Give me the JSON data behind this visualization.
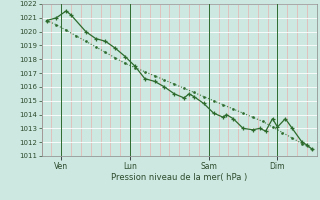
{
  "xlabel": "Pression niveau de la mer( hPa )",
  "bg_color": "#cce8e0",
  "grid_color_h": "#ffffff",
  "grid_color_v": "#e8b0b0",
  "line_color": "#2d6b2d",
  "ylim": [
    1011,
    1022
  ],
  "xlim": [
    0,
    28
  ],
  "yticks": [
    1011,
    1012,
    1013,
    1014,
    1015,
    1016,
    1017,
    1018,
    1019,
    1020,
    1021,
    1022
  ],
  "xtick_labels": [
    "Ven",
    "Lun",
    "Sam",
    "Dim"
  ],
  "xtick_positions": [
    2,
    9,
    17,
    24
  ],
  "day_vlines": [
    2,
    9,
    17,
    24
  ],
  "line1_x": [
    0.5,
    1.5,
    2.5,
    3.5,
    4.5,
    5.5,
    6.5,
    7.5,
    8.5,
    9.5,
    10.5,
    11.5,
    12.5,
    13.5,
    14.5,
    15.5,
    16.5,
    17.5,
    18.5,
    19.5,
    20.5,
    21.5,
    22.5,
    23.5,
    24.5,
    25.5,
    26.5,
    27.5
  ],
  "line1_y": [
    1020.8,
    1020.5,
    1020.1,
    1019.7,
    1019.3,
    1018.9,
    1018.5,
    1018.1,
    1017.7,
    1017.4,
    1017.1,
    1016.8,
    1016.5,
    1016.2,
    1015.9,
    1015.6,
    1015.3,
    1015.0,
    1014.7,
    1014.4,
    1014.1,
    1013.8,
    1013.5,
    1013.1,
    1012.7,
    1012.3,
    1011.9,
    1011.5
  ],
  "line2_x": [
    0.5,
    1.5,
    2.5,
    3.0,
    4.5,
    5.5,
    6.5,
    7.5,
    8.5,
    9.5,
    10.5,
    11.5,
    12.5,
    13.5,
    14.5,
    15.0,
    15.5,
    16.5,
    17.5,
    18.5,
    18.8,
    19.5,
    20.5,
    21.5,
    22.2,
    22.8,
    23.5,
    24.0,
    24.8,
    25.5,
    26.5,
    27.0,
    27.5
  ],
  "line2_y": [
    1020.8,
    1021.0,
    1021.5,
    1021.2,
    1020.0,
    1019.5,
    1019.3,
    1018.8,
    1018.2,
    1017.5,
    1016.6,
    1016.4,
    1016.0,
    1015.5,
    1015.2,
    1015.5,
    1015.3,
    1014.8,
    1014.1,
    1013.8,
    1014.0,
    1013.7,
    1013.0,
    1012.9,
    1013.0,
    1012.8,
    1013.7,
    1013.1,
    1013.7,
    1013.0,
    1012.0,
    1011.8,
    1011.5
  ]
}
